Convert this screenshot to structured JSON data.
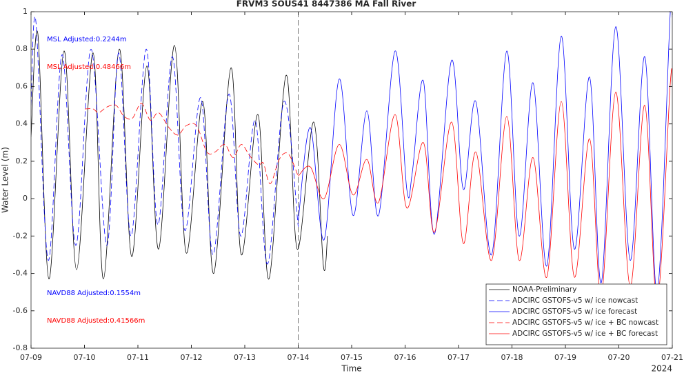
{
  "chart_data": {
    "type": "line",
    "title": "FRVM3 SOUS41 8447386 MA Fall River",
    "x_label": "Time",
    "y_label": "Water Level (m)",
    "x_year_label": "2024",
    "xlim": [
      9,
      21
    ],
    "ylim": [
      -0.8,
      1
    ],
    "xticks": [
      {
        "value": 9,
        "label": "07-09"
      },
      {
        "value": 10,
        "label": "07-10"
      },
      {
        "value": 11,
        "label": "07-11"
      },
      {
        "value": 12,
        "label": "07-12"
      },
      {
        "value": 13,
        "label": "07-13"
      },
      {
        "value": 14,
        "label": "07-14"
      },
      {
        "value": 15,
        "label": "07-15"
      },
      {
        "value": 16,
        "label": "07-16"
      },
      {
        "value": 17,
        "label": "07-17"
      },
      {
        "value": 18,
        "label": "07-18"
      },
      {
        "value": 19,
        "label": "07-19"
      },
      {
        "value": 20,
        "label": "07-20"
      },
      {
        "value": 21,
        "label": "07-21"
      }
    ],
    "yticks": [
      -0.8,
      -0.6,
      -0.4,
      -0.2,
      0,
      0.2,
      0.4,
      0.6,
      0.8,
      1
    ],
    "grid": false,
    "legend": "southeast",
    "vline_x": 14,
    "annotations": [
      {
        "text": "MSL Adjusted:0.2244m",
        "color": "#0000ff"
      },
      {
        "text": "MSL Adjusted:0.48466m",
        "color": "#ff0000"
      },
      {
        "text": "NAVD88 Adjusted:0.1554m",
        "color": "#0000ff"
      },
      {
        "text": "NAVD88 Adjusted:0.41566m",
        "color": "#ff0000"
      }
    ],
    "series": [
      {
        "name": "NOAA-Preliminary",
        "color": "#000000",
        "dashed": false,
        "x": [
          9.0,
          9.129,
          9.335,
          9.619,
          9.852,
          10.161,
          10.355,
          10.652,
          10.884,
          11.168,
          11.387,
          11.684,
          11.903,
          12.213,
          12.419,
          12.742,
          12.935,
          13.245,
          13.452,
          13.774,
          13.981,
          14.29,
          14.471,
          14.548
        ],
        "values": [
          0.33,
          0.88,
          -0.43,
          0.79,
          -0.38,
          0.78,
          -0.43,
          0.8,
          -0.31,
          0.71,
          -0.27,
          0.82,
          -0.29,
          0.52,
          -0.4,
          0.7,
          -0.3,
          0.45,
          -0.43,
          0.66,
          -0.27,
          0.41,
          -0.36,
          -0.2
        ]
      },
      {
        "name": "ADCIRC GSTOFS-v5 w/ ice nowcast",
        "color": "#0000ff",
        "dashed": true,
        "x": [
          9.0,
          9.09,
          9.323,
          9.581,
          9.839,
          10.123,
          10.419,
          10.639,
          10.871,
          11.155,
          11.374,
          11.645,
          11.877,
          12.174,
          12.406,
          12.703,
          12.923,
          13.194,
          13.426,
          13.735,
          14.0
        ],
        "values": [
          0.5,
          0.95,
          -0.33,
          0.77,
          -0.25,
          0.8,
          -0.25,
          0.78,
          -0.2,
          0.8,
          -0.14,
          0.76,
          -0.17,
          0.54,
          -0.3,
          0.56,
          -0.2,
          0.42,
          -0.35,
          0.52,
          -0.15
        ]
      },
      {
        "name": "ADCIRC GSTOFS-v5 w/ ice forecast",
        "color": "#0000ff",
        "dashed": false,
        "x": [
          14.0,
          14.226,
          14.484,
          14.768,
          15.026,
          15.284,
          15.503,
          15.813,
          16.032,
          16.135,
          16.342,
          16.548,
          16.871,
          17.09,
          17.323,
          17.619,
          17.903,
          18.135,
          18.394,
          18.652,
          18.923,
          19.168,
          19.452,
          19.671,
          19.942,
          20.213,
          20.484,
          20.716,
          20.961,
          21.0
        ],
        "values": [
          -0.12,
          0.38,
          -0.22,
          0.64,
          -0.09,
          0.47,
          -0.09,
          0.79,
          0.05,
          0.14,
          0.63,
          -0.19,
          0.74,
          0.05,
          0.52,
          -0.3,
          0.79,
          -0.2,
          0.62,
          -0.36,
          0.87,
          -0.27,
          0.65,
          -0.45,
          0.92,
          -0.33,
          0.76,
          -0.5,
          0.99,
          0.97
        ]
      },
      {
        "name": "ADCIRC GSTOFS-v5 w/ ice + BC nowcast",
        "color": "#ff0000",
        "dashed": true,
        "x": [
          10.006,
          10.161,
          10.265,
          10.419,
          10.587,
          10.742,
          10.897,
          11.065,
          11.232,
          11.387,
          11.581,
          11.748,
          11.903,
          12.097,
          12.29,
          12.445,
          12.626,
          12.781,
          12.935,
          13.09,
          13.258,
          13.348,
          13.477,
          13.645,
          13.813,
          14.0
        ],
        "values": [
          0.48,
          0.48,
          0.46,
          0.49,
          0.5,
          0.44,
          0.43,
          0.51,
          0.42,
          0.46,
          0.38,
          0.34,
          0.39,
          0.39,
          0.25,
          0.25,
          0.29,
          0.22,
          0.29,
          0.23,
          0.18,
          0.19,
          0.08,
          0.21,
          0.24,
          0.12
        ]
      },
      {
        "name": "ADCIRC GSTOFS-v5 w/ ice + BC forecast",
        "color": "#ff0000",
        "dashed": false,
        "x": [
          14.0,
          14.226,
          14.484,
          14.768,
          15.026,
          15.284,
          15.503,
          15.813,
          16.032,
          16.342,
          16.548,
          16.871,
          17.09,
          17.323,
          17.619,
          17.903,
          18.135,
          18.394,
          18.652,
          18.923,
          19.168,
          19.452,
          19.671,
          19.942,
          20.213,
          20.484,
          20.716,
          20.961,
          21.0
        ],
        "values": [
          0.12,
          0.17,
          0.0,
          0.29,
          0.02,
          0.21,
          -0.02,
          0.45,
          -0.05,
          0.3,
          -0.18,
          0.41,
          -0.24,
          0.25,
          -0.33,
          0.44,
          -0.33,
          0.22,
          -0.42,
          0.52,
          -0.42,
          0.32,
          -0.52,
          0.57,
          -0.47,
          0.5,
          -0.55,
          0.61,
          0.61
        ]
      }
    ]
  }
}
